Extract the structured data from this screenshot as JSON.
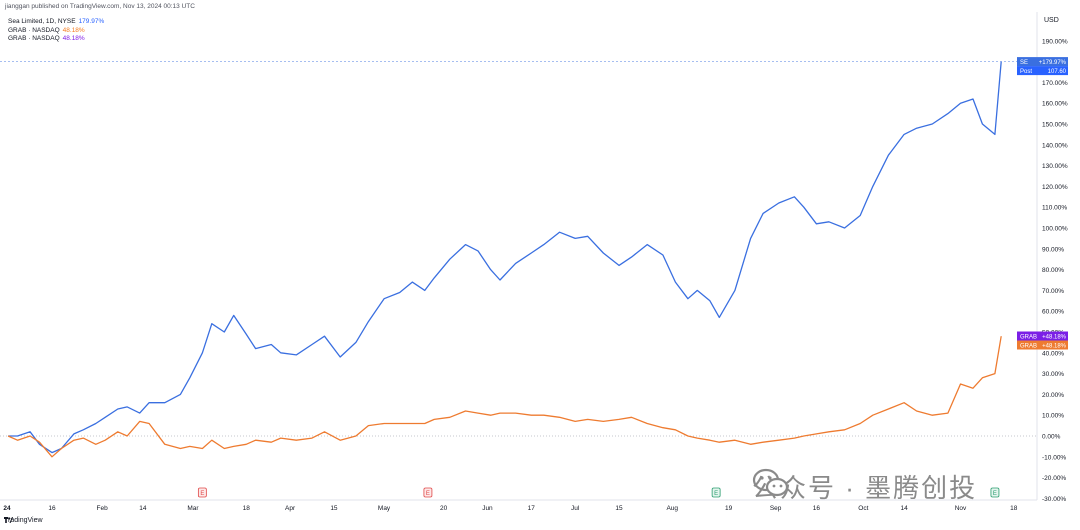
{
  "header": {
    "text": "jianggan published on TradingView.com, Nov 13, 2024 00:13 UTC"
  },
  "legend": [
    {
      "label": "Sea Limited, 1D, NYSE",
      "value": "179.97%",
      "color": "#2962ff"
    },
    {
      "label": "GRAB · NASDAQ",
      "value": "48.18%",
      "color": "#f57c20"
    },
    {
      "label": "GRAB · NASDAQ",
      "value": "48.18%",
      "color": "#7e19e6"
    }
  ],
  "currency": "USD",
  "footer": {
    "brand": "TradingView"
  },
  "watermark": {
    "text": "公众号 · 墨腾创投"
  },
  "colors": {
    "se": "#3a6fe0",
    "grab": "#ee7b30",
    "grab_label": "#7b1fe6",
    "zero_line": "#b2b5be",
    "price_line": "#3a6fe0"
  },
  "badges": {
    "se": {
      "ticker": "SE",
      "pct": "+179.97%",
      "sub1": "Post",
      "sub2": "107.60"
    },
    "grab_purple": {
      "ticker": "GRAB",
      "pct": "+48.18%"
    },
    "grab_orange": {
      "ticker": "GRAB",
      "pct": "+48.18%"
    }
  },
  "event_markers": [
    {
      "label": "E",
      "type": "earnings-red",
      "date": "2024-03-04"
    },
    {
      "label": "E",
      "type": "earnings-red",
      "date": "2024-05-15"
    },
    {
      "label": "E",
      "type": "earnings-green",
      "date": "2024-08-15"
    },
    {
      "label": "E",
      "type": "earnings-green",
      "date": "2024-11-12"
    }
  ],
  "chart_data": {
    "type": "line",
    "xlabel": "",
    "ylabel": "",
    "y_unit": "%",
    "ylim": [
      -15,
      200
    ],
    "yticks": [
      "190.00%",
      "180.00%",
      "170.00%",
      "160.00%",
      "150.00%",
      "140.00%",
      "130.00%",
      "120.00%",
      "110.00%",
      "100.00%",
      "90.00%",
      "80.00%",
      "70.00%",
      "60.00%",
      "50.00%",
      "40.00%",
      "30.00%",
      "20.00%",
      "10.00%",
      "0.00%",
      "-10.00%",
      "-20.00%",
      "-30.00%"
    ],
    "xticks": [
      "24",
      "16",
      "Feb",
      "14",
      "Mar",
      "18",
      "Apr",
      "15",
      "May",
      "20",
      "Jun",
      "17",
      "Jul",
      "15",
      "Aug",
      "19",
      "Sep",
      "16",
      "Oct",
      "14",
      "Nov",
      "18"
    ],
    "x_range": [
      "2024-01-01",
      "2024-11-20"
    ],
    "series": [
      {
        "name": "Sea Limited",
        "points": [
          [
            "2024-01-02",
            0
          ],
          [
            "2024-01-05",
            0
          ],
          [
            "2024-01-09",
            2
          ],
          [
            "2024-01-12",
            -4
          ],
          [
            "2024-01-16",
            -8
          ],
          [
            "2024-01-19",
            -6
          ],
          [
            "2024-01-23",
            1
          ],
          [
            "2024-01-26",
            3
          ],
          [
            "2024-01-30",
            6
          ],
          [
            "2024-02-02",
            9
          ],
          [
            "2024-02-06",
            13
          ],
          [
            "2024-02-09",
            14
          ],
          [
            "2024-02-13",
            11
          ],
          [
            "2024-02-16",
            16
          ],
          [
            "2024-02-21",
            16
          ],
          [
            "2024-02-26",
            20
          ],
          [
            "2024-02-29",
            28
          ],
          [
            "2024-03-04",
            40
          ],
          [
            "2024-03-07",
            54
          ],
          [
            "2024-03-11",
            50
          ],
          [
            "2024-03-14",
            58
          ],
          [
            "2024-03-18",
            49
          ],
          [
            "2024-03-21",
            42
          ],
          [
            "2024-03-26",
            44
          ],
          [
            "2024-03-29",
            40
          ],
          [
            "2024-04-03",
            39
          ],
          [
            "2024-04-08",
            44
          ],
          [
            "2024-04-12",
            48
          ],
          [
            "2024-04-17",
            38
          ],
          [
            "2024-04-22",
            45
          ],
          [
            "2024-04-26",
            55
          ],
          [
            "2024-05-01",
            66
          ],
          [
            "2024-05-06",
            69
          ],
          [
            "2024-05-10",
            74
          ],
          [
            "2024-05-14",
            70
          ],
          [
            "2024-05-17",
            76
          ],
          [
            "2024-05-22",
            85
          ],
          [
            "2024-05-27",
            92
          ],
          [
            "2024-05-31",
            89
          ],
          [
            "2024-06-04",
            80
          ],
          [
            "2024-06-07",
            75
          ],
          [
            "2024-06-12",
            83
          ],
          [
            "2024-06-17",
            88
          ],
          [
            "2024-06-21",
            92
          ],
          [
            "2024-06-26",
            98
          ],
          [
            "2024-07-01",
            95
          ],
          [
            "2024-07-05",
            96
          ],
          [
            "2024-07-10",
            88
          ],
          [
            "2024-07-15",
            82
          ],
          [
            "2024-07-19",
            86
          ],
          [
            "2024-07-24",
            92
          ],
          [
            "2024-07-29",
            87
          ],
          [
            "2024-08-02",
            74
          ],
          [
            "2024-08-06",
            66
          ],
          [
            "2024-08-09",
            70
          ],
          [
            "2024-08-13",
            65
          ],
          [
            "2024-08-16",
            57
          ],
          [
            "2024-08-21",
            70
          ],
          [
            "2024-08-26",
            95
          ],
          [
            "2024-08-30",
            107
          ],
          [
            "2024-09-04",
            112
          ],
          [
            "2024-09-09",
            115
          ],
          [
            "2024-09-12",
            110
          ],
          [
            "2024-09-16",
            102
          ],
          [
            "2024-09-20",
            103
          ],
          [
            "2024-09-25",
            100
          ],
          [
            "2024-09-30",
            106
          ],
          [
            "2024-10-04",
            120
          ],
          [
            "2024-10-09",
            135
          ],
          [
            "2024-10-14",
            145
          ],
          [
            "2024-10-18",
            148
          ],
          [
            "2024-10-23",
            150
          ],
          [
            "2024-10-28",
            155
          ],
          [
            "2024-11-01",
            160
          ],
          [
            "2024-11-05",
            162
          ],
          [
            "2024-11-08",
            150
          ],
          [
            "2024-11-12",
            145
          ],
          [
            "2024-11-14",
            180
          ]
        ]
      },
      {
        "name": "GRAB",
        "points": [
          [
            "2024-01-02",
            0
          ],
          [
            "2024-01-05",
            -2
          ],
          [
            "2024-01-09",
            0
          ],
          [
            "2024-01-12",
            -3
          ],
          [
            "2024-01-16",
            -10
          ],
          [
            "2024-01-19",
            -6
          ],
          [
            "2024-01-23",
            -2
          ],
          [
            "2024-01-26",
            -1
          ],
          [
            "2024-01-30",
            -4
          ],
          [
            "2024-02-02",
            -2
          ],
          [
            "2024-02-06",
            2
          ],
          [
            "2024-02-09",
            0
          ],
          [
            "2024-02-13",
            7
          ],
          [
            "2024-02-16",
            6
          ],
          [
            "2024-02-21",
            -4
          ],
          [
            "2024-02-26",
            -6
          ],
          [
            "2024-02-29",
            -5
          ],
          [
            "2024-03-04",
            -6
          ],
          [
            "2024-03-07",
            -2
          ],
          [
            "2024-03-11",
            -6
          ],
          [
            "2024-03-14",
            -5
          ],
          [
            "2024-03-18",
            -4
          ],
          [
            "2024-03-21",
            -2
          ],
          [
            "2024-03-26",
            -3
          ],
          [
            "2024-03-29",
            -1
          ],
          [
            "2024-04-03",
            -2
          ],
          [
            "2024-04-08",
            -1
          ],
          [
            "2024-04-12",
            2
          ],
          [
            "2024-04-17",
            -2
          ],
          [
            "2024-04-22",
            0
          ],
          [
            "2024-04-26",
            5
          ],
          [
            "2024-05-01",
            6
          ],
          [
            "2024-05-06",
            6
          ],
          [
            "2024-05-10",
            6
          ],
          [
            "2024-05-14",
            6
          ],
          [
            "2024-05-17",
            8
          ],
          [
            "2024-05-22",
            9
          ],
          [
            "2024-05-27",
            12
          ],
          [
            "2024-05-31",
            11
          ],
          [
            "2024-06-04",
            10
          ],
          [
            "2024-06-07",
            11
          ],
          [
            "2024-06-12",
            11
          ],
          [
            "2024-06-17",
            10
          ],
          [
            "2024-06-21",
            10
          ],
          [
            "2024-06-26",
            9
          ],
          [
            "2024-07-01",
            7
          ],
          [
            "2024-07-05",
            8
          ],
          [
            "2024-07-10",
            7
          ],
          [
            "2024-07-15",
            8
          ],
          [
            "2024-07-19",
            9
          ],
          [
            "2024-07-24",
            6
          ],
          [
            "2024-07-29",
            4
          ],
          [
            "2024-08-02",
            3
          ],
          [
            "2024-08-06",
            0
          ],
          [
            "2024-08-09",
            -1
          ],
          [
            "2024-08-13",
            -2
          ],
          [
            "2024-08-16",
            -3
          ],
          [
            "2024-08-21",
            -2
          ],
          [
            "2024-08-26",
            -4
          ],
          [
            "2024-08-30",
            -3
          ],
          [
            "2024-09-04",
            -2
          ],
          [
            "2024-09-09",
            -1
          ],
          [
            "2024-09-12",
            0
          ],
          [
            "2024-09-16",
            1
          ],
          [
            "2024-09-20",
            2
          ],
          [
            "2024-09-25",
            3
          ],
          [
            "2024-09-30",
            6
          ],
          [
            "2024-10-04",
            10
          ],
          [
            "2024-10-09",
            13
          ],
          [
            "2024-10-14",
            16
          ],
          [
            "2024-10-18",
            12
          ],
          [
            "2024-10-23",
            10
          ],
          [
            "2024-10-28",
            11
          ],
          [
            "2024-11-01",
            25
          ],
          [
            "2024-11-05",
            23
          ],
          [
            "2024-11-08",
            28
          ],
          [
            "2024-11-12",
            30
          ],
          [
            "2024-11-14",
            48
          ]
        ]
      }
    ],
    "reference_lines": [
      {
        "value": 0,
        "style": "dotted"
      },
      {
        "value": 179.97,
        "style": "dashed"
      }
    ],
    "grid": false,
    "legend_position": "top-left"
  }
}
